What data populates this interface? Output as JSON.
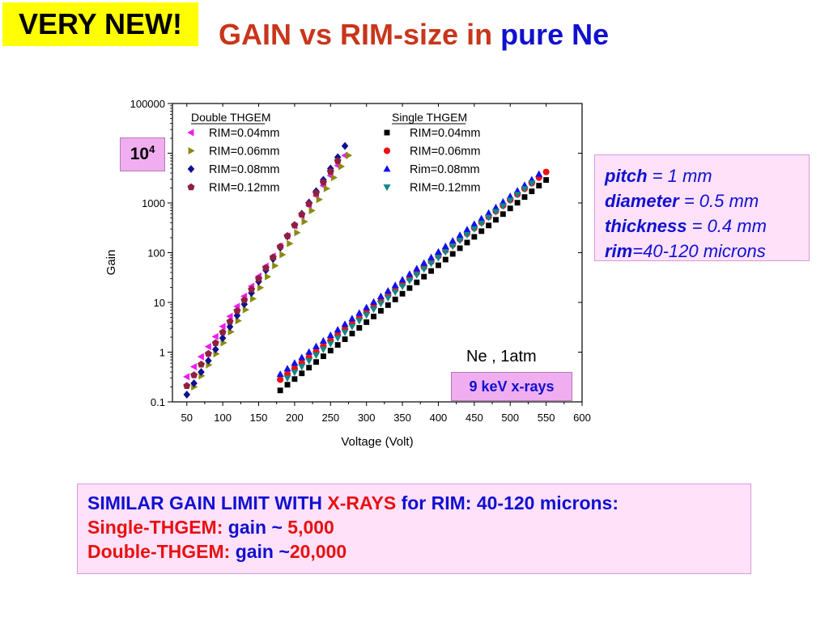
{
  "badge": "VERY NEW!",
  "title": {
    "part1": "GAIN vs RIM-size in ",
    "part2": "pure Ne"
  },
  "callout_104": {
    "base": "10",
    "exp": "4"
  },
  "conditions": {
    "gas": "Ne , 1atm",
    "source": "9 keV x-rays"
  },
  "params": {
    "pitch_label": "pitch",
    "pitch_value": " = 1 mm",
    "diameter_label": "diameter",
    "diameter_value": " = 0.5 mm",
    "thickness_label": "thickness",
    "thickness_value": " = 0.4 mm",
    "rim_label": "rim",
    "rim_value": "=40-120 microns"
  },
  "summary": {
    "line1_a": "SIMILAR GAIN LIMIT WITH ",
    "line1_b": "X-RAYS",
    "line1_c": " for RIM: 40-120 microns:",
    "line2_a": "Single-THGEM:  ",
    "line2_b": "gain ~ ",
    "line2_c": "5,000",
    "line3_a": "Double-THGEM: ",
    "line3_b": "gain ~",
    "line3_c": "20,000"
  },
  "chart_data": {
    "type": "scatter",
    "title": "",
    "xlabel": "Voltage (Volt)",
    "ylabel": "Gain",
    "xlim": [
      30,
      600
    ],
    "ylim": [
      0.1,
      100000
    ],
    "yscale": "log",
    "xticks": [
      50,
      100,
      150,
      200,
      250,
      300,
      350,
      400,
      450,
      500,
      550,
      600
    ],
    "yticks": [
      {
        "v": 0.1,
        "label": "0.1"
      },
      {
        "v": 1,
        "label": "1"
      },
      {
        "v": 10,
        "label": "10"
      },
      {
        "v": 100,
        "label": "100"
      },
      {
        "v": 1000,
        "label": "1000"
      },
      {
        "v": 10000,
        "label": "10000"
      },
      {
        "v": 100000,
        "label": "100000"
      }
    ],
    "legend_groups": [
      {
        "title": "Double THGEM",
        "placement": "top-left"
      },
      {
        "title": "Single THGEM",
        "placement": "top-center"
      }
    ],
    "series": [
      {
        "name": "RIM=0.04mm",
        "group": 0,
        "marker": "tri-left",
        "color": "#ee1cee",
        "x": [
          50,
          270
        ],
        "y": [
          0.32,
          9000
        ],
        "n": 23
      },
      {
        "name": "RIM=0.06mm",
        "group": 0,
        "marker": "tri-right",
        "color": "#8a8a10",
        "x": [
          60,
          275
        ],
        "y": [
          0.2,
          9000
        ],
        "n": 22
      },
      {
        "name": "RIM=0.08mm",
        "group": 0,
        "marker": "diamond",
        "color": "#101090",
        "x": [
          50,
          270
        ],
        "y": [
          0.14,
          14000
        ],
        "n": 23
      },
      {
        "name": "RIM=0.12mm",
        "group": 0,
        "marker": "pentagon",
        "color": "#902040",
        "x": [
          50,
          260
        ],
        "y": [
          0.21,
          7000
        ],
        "n": 22
      },
      {
        "name": "RIM=0.04mm",
        "group": 1,
        "marker": "square",
        "color": "#000000",
        "x": [
          180,
          550
        ],
        "y": [
          0.17,
          2900
        ],
        "n": 38
      },
      {
        "name": "RIM=0.06mm",
        "group": 1,
        "marker": "circle",
        "color": "#ee1010",
        "x": [
          180,
          550
        ],
        "y": [
          0.28,
          4200
        ],
        "n": 38
      },
      {
        "name": "Rim=0.08mm",
        "group": 1,
        "marker": "tri-up",
        "color": "#1010ee",
        "x": [
          180,
          540
        ],
        "y": [
          0.36,
          3800
        ],
        "n": 37
      },
      {
        "name": "RIM=0.12mm",
        "group": 1,
        "marker": "tri-down",
        "color": "#108888",
        "x": [
          190,
          530
        ],
        "y": [
          0.3,
          2500
        ],
        "n": 35
      }
    ]
  }
}
